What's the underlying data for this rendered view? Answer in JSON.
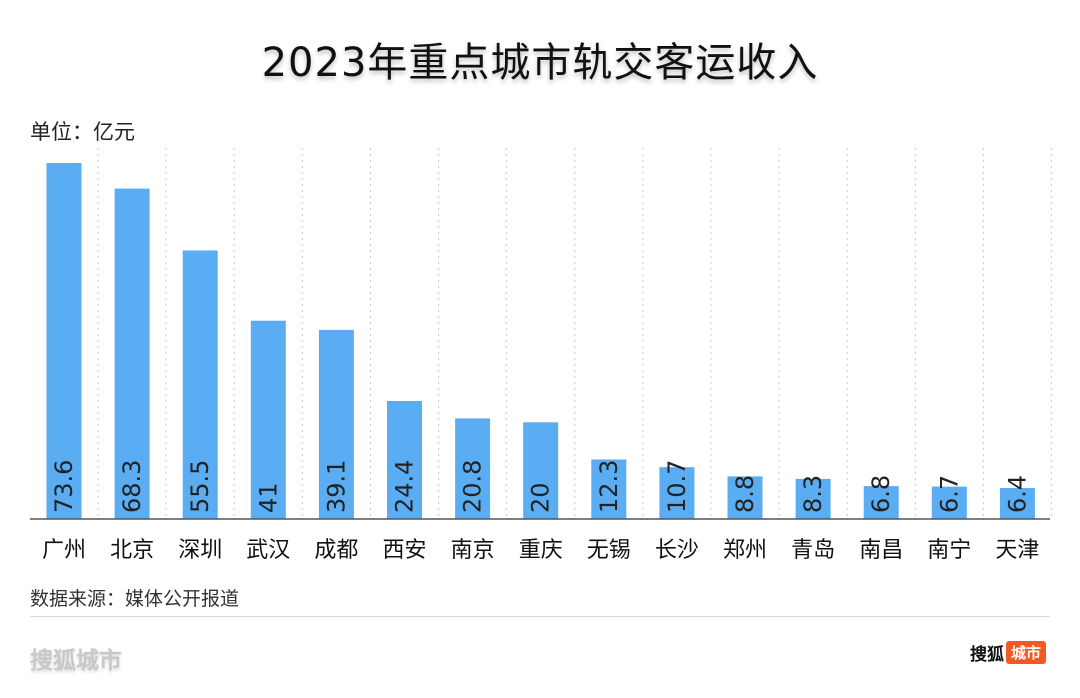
{
  "title": "2023年重点城市轨交客运收入",
  "unit_label": "单位：亿元",
  "source": "数据来源：媒体公开报道",
  "branding": {
    "left": "搜狐城市",
    "right_main": "搜狐",
    "right_tag": "城市",
    "tag_color": "#f15a24"
  },
  "chart_data": {
    "type": "bar",
    "title": "2023年重点城市轨交客运收入",
    "ylabel": "单位：亿元",
    "xlabel": "",
    "categories": [
      "广州",
      "北京",
      "深圳",
      "武汉",
      "成都",
      "西安",
      "南京",
      "重庆",
      "无锡",
      "长沙",
      "郑州",
      "青岛",
      "南昌",
      "南宁",
      "天津"
    ],
    "values": [
      73.6,
      68.3,
      55.5,
      41,
      39.1,
      24.4,
      20.8,
      20,
      12.3,
      10.7,
      8.8,
      8.3,
      6.8,
      6.7,
      6.4
    ],
    "value_labels": [
      "73.6",
      "68.3",
      "55.5",
      "41",
      "39.1",
      "24.4",
      "20.8",
      "20",
      "12.3",
      "10.7",
      "8.8",
      "8.3",
      "6.8",
      "6.7",
      "6.4"
    ],
    "ylim": [
      0,
      73.6
    ],
    "bar_color": "#5aadf2",
    "grid": "vertical dotted",
    "legend": "none"
  }
}
